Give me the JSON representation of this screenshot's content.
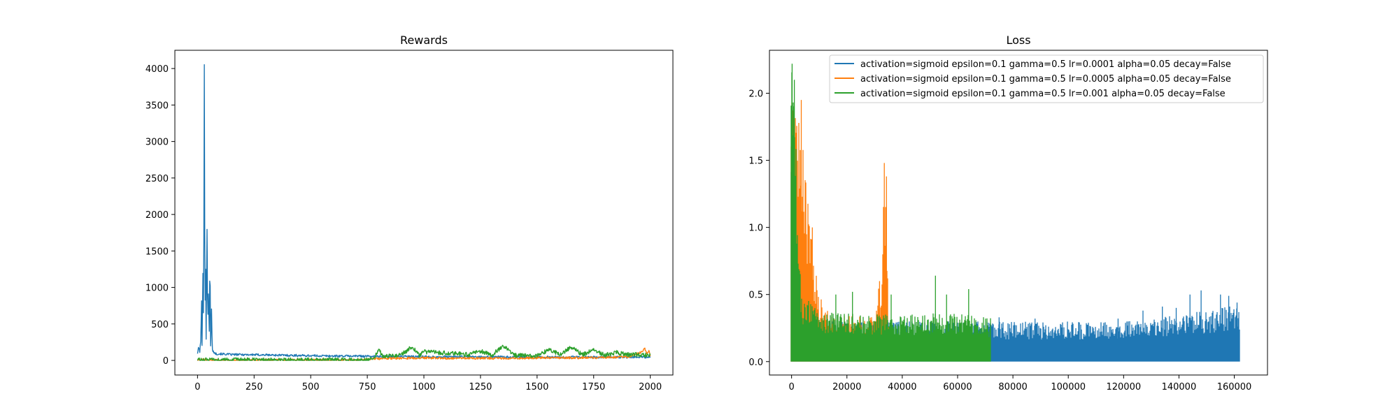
{
  "chart_data": [
    {
      "type": "line",
      "title": "Rewards",
      "xlabel": "",
      "ylabel": "",
      "xlim": [
        -100,
        2100
      ],
      "ylim": [
        -200,
        4250
      ],
      "xticks": [
        0,
        250,
        500,
        750,
        1000,
        1250,
        1500,
        1750,
        2000
      ],
      "yticks": [
        0,
        500,
        1000,
        1500,
        2000,
        2500,
        3000,
        3500,
        4000
      ],
      "xtick_labels": [
        "0",
        "250",
        "500",
        "750",
        "1000",
        "1250",
        "1500",
        "1750",
        "2000"
      ],
      "ytick_labels": [
        "0",
        "500",
        "1000",
        "1500",
        "2000",
        "2500",
        "3000",
        "3500",
        "4000"
      ],
      "grid": false,
      "legend": "none",
      "series": [
        {
          "color": "#1f77b4",
          "points": [
            [
              0,
              100
            ],
            [
              5,
              180
            ],
            [
              10,
              120
            ],
            [
              15,
              300
            ],
            [
              18,
              820
            ],
            [
              20,
              200
            ],
            [
              24,
              1200
            ],
            [
              27,
              400
            ],
            [
              30,
              4050
            ],
            [
              33,
              600
            ],
            [
              36,
              1250
            ],
            [
              38,
              300
            ],
            [
              42,
              1800
            ],
            [
              45,
              500
            ],
            [
              48,
              900
            ],
            [
              52,
              400
            ],
            [
              55,
              1450
            ],
            [
              58,
              200
            ],
            [
              62,
              700
            ],
            [
              65,
              150
            ],
            [
              70,
              120
            ],
            [
              80,
              90
            ],
            [
              100,
              90
            ],
            [
              150,
              80
            ],
            [
              200,
              80
            ],
            [
              300,
              75
            ],
            [
              400,
              70
            ],
            [
              500,
              65
            ],
            [
              600,
              60
            ],
            [
              700,
              60
            ],
            [
              800,
              55
            ],
            [
              900,
              55
            ],
            [
              1000,
              50
            ],
            [
              1100,
              50
            ],
            [
              1200,
              50
            ],
            [
              1300,
              48
            ],
            [
              1400,
              45
            ],
            [
              1500,
              45
            ],
            [
              1600,
              45
            ],
            [
              1700,
              45
            ],
            [
              1800,
              45
            ],
            [
              1900,
              45
            ],
            [
              2000,
              45
            ]
          ],
          "noise": 15
        },
        {
          "color": "#ff7f0e",
          "points": [
            [
              0,
              5
            ],
            [
              700,
              5
            ],
            [
              750,
              15
            ],
            [
              800,
              25
            ],
            [
              900,
              30
            ],
            [
              1000,
              35
            ],
            [
              1100,
              30
            ],
            [
              1200,
              30
            ],
            [
              1300,
              30
            ],
            [
              1400,
              30
            ],
            [
              1500,
              35
            ],
            [
              1600,
              35
            ],
            [
              1700,
              35
            ],
            [
              1800,
              40
            ],
            [
              1900,
              50
            ],
            [
              1960,
              110
            ],
            [
              1975,
              170
            ],
            [
              1985,
              90
            ],
            [
              1995,
              150
            ],
            [
              2000,
              60
            ]
          ],
          "noise": 15
        },
        {
          "color": "#2ca02c",
          "points": [
            [
              0,
              5
            ],
            [
              750,
              5
            ],
            [
              780,
              40
            ],
            [
              800,
              150
            ],
            [
              820,
              50
            ],
            [
              900,
              80
            ],
            [
              950,
              190
            ],
            [
              980,
              60
            ],
            [
              1000,
              120
            ],
            [
              1100,
              100
            ],
            [
              1200,
              80
            ],
            [
              1250,
              130
            ],
            [
              1300,
              70
            ],
            [
              1350,
              200
            ],
            [
              1400,
              70
            ],
            [
              1500,
              60
            ],
            [
              1550,
              150
            ],
            [
              1600,
              80
            ],
            [
              1650,
              180
            ],
            [
              1700,
              80
            ],
            [
              1750,
              140
            ],
            [
              1800,
              70
            ],
            [
              1850,
              110
            ],
            [
              1900,
              80
            ],
            [
              2000,
              70
            ]
          ],
          "noise": 30
        }
      ]
    },
    {
      "type": "line",
      "title": "Loss",
      "xlabel": "",
      "ylabel": "",
      "xlim": [
        -8000,
        172000
      ],
      "ylim": [
        -0.1,
        2.32
      ],
      "xticks": [
        0,
        20000,
        40000,
        60000,
        80000,
        100000,
        120000,
        140000,
        160000
      ],
      "yticks": [
        0.0,
        0.5,
        1.0,
        1.5,
        2.0
      ],
      "xtick_labels": [
        "0",
        "20000",
        "40000",
        "60000",
        "80000",
        "100000",
        "120000",
        "140000",
        "160000"
      ],
      "ytick_labels": [
        "0.0",
        "0.5",
        "1.0",
        "1.5",
        "2.0"
      ],
      "grid": false,
      "legend": "top-right",
      "series": [
        {
          "name": "activation=sigmoid epsilon=0.1 gamma=0.5 lr=0.0001 alpha=0.05 decay=False",
          "color": "#1f77b4",
          "x_max": 162000,
          "envelope": [
            [
              0,
              1.9
            ],
            [
              2000,
              0.6
            ],
            [
              5000,
              0.3
            ],
            [
              72000,
              0.3
            ],
            [
              80000,
              0.3
            ],
            [
              100000,
              0.3
            ],
            [
              120000,
              0.3
            ],
            [
              130000,
              0.33
            ],
            [
              140000,
              0.35
            ],
            [
              150000,
              0.38
            ],
            [
              162000,
              0.43
            ]
          ],
          "spikes": [
            [
              75000,
              0.33
            ],
            [
              88000,
              0.32
            ],
            [
              118000,
              0.32
            ],
            [
              127000,
              0.38
            ],
            [
              134000,
              0.41
            ],
            [
              139000,
              0.4
            ],
            [
              144000,
              0.5
            ],
            [
              148000,
              0.53
            ],
            [
              155000,
              0.5
            ],
            [
              158000,
              0.49
            ],
            [
              161000,
              0.44
            ]
          ]
        },
        {
          "name": "activation=sigmoid epsilon=0.1 gamma=0.5 lr=0.0005 alpha=0.05 decay=False",
          "color": "#ff7f0e",
          "x_max": 35000,
          "envelope": [
            [
              0,
              2.0
            ],
            [
              2000,
              1.95
            ],
            [
              3000,
              1.85
            ],
            [
              4500,
              1.5
            ],
            [
              6000,
              1.2
            ],
            [
              7000,
              0.95
            ],
            [
              8500,
              0.7
            ],
            [
              10000,
              0.5
            ],
            [
              12000,
              0.4
            ],
            [
              15000,
              0.35
            ],
            [
              30000,
              0.33
            ],
            [
              31000,
              0.6
            ],
            [
              32500,
              0.5
            ],
            [
              33500,
              1.48
            ],
            [
              34200,
              1.3
            ],
            [
              35000,
              0.4
            ]
          ],
          "spikes": [
            [
              3500,
              1.95
            ],
            [
              7500,
              1.0
            ],
            [
              31800,
              0.6
            ],
            [
              33500,
              1.48
            ],
            [
              34300,
              1.38
            ]
          ]
        },
        {
          "name": "activation=sigmoid epsilon=0.1 gamma=0.5 lr=0.001 alpha=0.05 decay=False",
          "color": "#2ca02c",
          "x_max": 72000,
          "envelope": [
            [
              0,
              2.22
            ],
            [
              800,
              2.1
            ],
            [
              1500,
              1.7
            ],
            [
              2500,
              0.9
            ],
            [
              4000,
              0.5
            ],
            [
              10000,
              0.38
            ],
            [
              20000,
              0.36
            ],
            [
              30000,
              0.36
            ],
            [
              40000,
              0.35
            ],
            [
              50000,
              0.36
            ],
            [
              60000,
              0.36
            ],
            [
              72000,
              0.33
            ]
          ],
          "spikes": [
            [
              200,
              2.22
            ],
            [
              1000,
              2.1
            ],
            [
              16000,
              0.5
            ],
            [
              22000,
              0.52
            ],
            [
              36000,
              0.5
            ],
            [
              52000,
              0.64
            ],
            [
              56000,
              0.5
            ],
            [
              64000,
              0.54
            ]
          ]
        }
      ]
    }
  ]
}
